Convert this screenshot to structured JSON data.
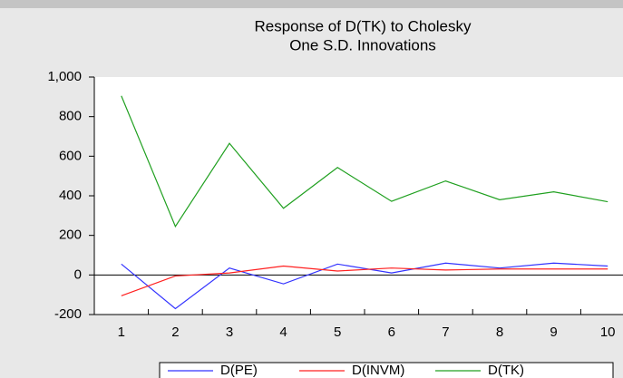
{
  "chart_data": {
    "type": "line",
    "title": "Response of D(TK) to Cholesky",
    "subtitle": "One S.D. Innovations",
    "categories": [
      "1",
      "2",
      "3",
      "4",
      "5",
      "6",
      "7",
      "8",
      "9",
      "10"
    ],
    "series": [
      {
        "name": "D(PE)",
        "color": "#3333ff",
        "values": [
          55,
          -170,
          35,
          -45,
          55,
          10,
          60,
          35,
          60,
          45
        ]
      },
      {
        "name": "D(INVM)",
        "color": "#ff2020",
        "values": [
          -105,
          -5,
          10,
          45,
          20,
          35,
          25,
          30,
          30,
          30
        ]
      },
      {
        "name": "D(TK)",
        "color": "#20a020",
        "values": [
          905,
          245,
          665,
          337,
          543,
          372,
          475,
          380,
          420,
          370
        ]
      }
    ],
    "ylim": [
      -200,
      1000
    ],
    "yticks": [
      -200,
      0,
      200,
      400,
      600,
      800,
      {
        "value": 1000,
        "label": "1,000"
      }
    ],
    "legend": "bottom"
  }
}
